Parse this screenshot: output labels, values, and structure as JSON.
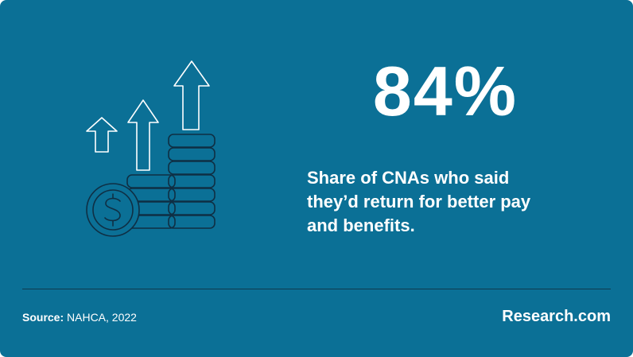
{
  "stat": {
    "value": "84%"
  },
  "description": "Share of CNAs who said they’d return for better pay and benefits.",
  "source": {
    "label": "Source:",
    "text": "NAHCA, 2022"
  },
  "brand": "Research.com",
  "icons": [
    "money-growth-icon",
    "dollar-coin-icon",
    "up-arrow-icon",
    "coin-stack-icon"
  ],
  "colors": {
    "background": "#0b7096",
    "icon_stroke": "#0f2f44",
    "arrow_stroke": "#ffffff",
    "text": "#ffffff"
  }
}
